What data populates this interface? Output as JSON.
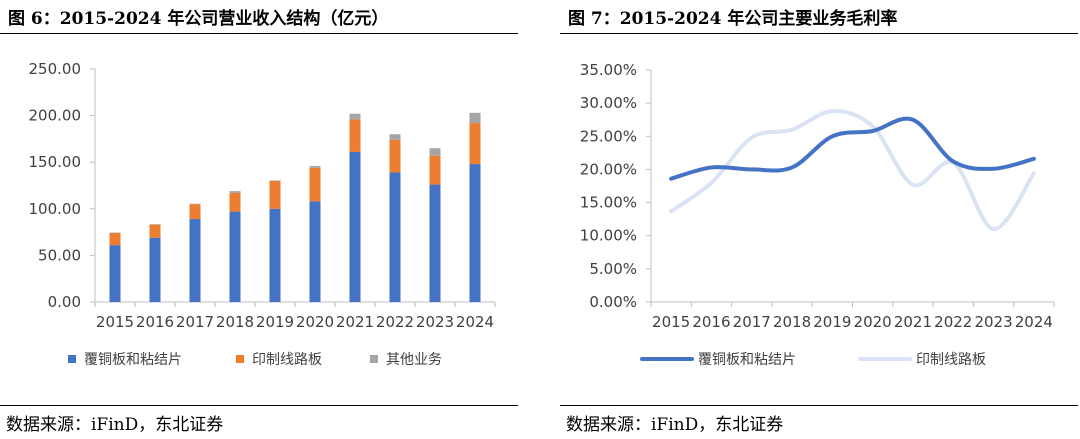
{
  "left": {
    "title": "图 6：2015-2024 年公司营业收入结构（亿元）",
    "source": "数据来源：iFinD，东北证券",
    "y_tick_labels": [
      "0.00",
      "50.00",
      "100.00",
      "150.00",
      "200.00",
      "250.00"
    ],
    "colors": {
      "ccl": "#4472C4",
      "pcb": "#ED7D31",
      "other": "#A5A5A5"
    }
  },
  "right": {
    "title": "图 7：2015-2024 年公司主要业务毛利率",
    "source": "数据来源：iFinD，东北证券",
    "y_tick_labels": [
      "0.00%",
      "5.00%",
      "10.00%",
      "15.00%",
      "20.00%",
      "25.00%",
      "30.00%",
      "35.00%"
    ],
    "colors": {
      "ccl": "#4472C4",
      "pcb": "#DAE3F3"
    }
  },
  "chart_data": [
    {
      "type": "bar",
      "stacked": true,
      "title": "图 6：2015-2024 年公司营业收入结构（亿元）",
      "categories": [
        "2015",
        "2016",
        "2017",
        "2018",
        "2019",
        "2020",
        "2021",
        "2022",
        "2023",
        "2024"
      ],
      "series": [
        {
          "name": "覆铜板和粘结片",
          "values": [
            61,
            69,
            89,
            97,
            100,
            108,
            161,
            139,
            126,
            148
          ]
        },
        {
          "name": "印制线路板",
          "values": [
            13,
            14,
            16,
            20,
            30,
            36,
            35,
            35,
            31,
            44
          ]
        },
        {
          "name": "其他业务",
          "values": [
            0.5,
            0.5,
            0.5,
            2,
            0.5,
            2,
            6,
            6,
            8,
            11
          ]
        }
      ],
      "ylim": [
        0,
        250
      ],
      "legend_position": "bottom"
    },
    {
      "type": "line",
      "title": "图 7：2015-2024 年公司主要业务毛利率",
      "categories": [
        "2015",
        "2016",
        "2017",
        "2018",
        "2019",
        "2020",
        "2021",
        "2022",
        "2023",
        "2024"
      ],
      "series": [
        {
          "name": "覆铜板和粘结片",
          "values": [
            0.186,
            0.203,
            0.2,
            0.203,
            0.25,
            0.258,
            0.275,
            0.212,
            0.201,
            0.216
          ]
        },
        {
          "name": "印制线路板",
          "values": [
            0.137,
            0.18,
            0.248,
            0.26,
            0.288,
            0.265,
            0.177,
            0.21,
            0.11,
            0.194
          ]
        }
      ],
      "ylim": [
        0,
        0.35
      ],
      "legend_position": "bottom"
    }
  ]
}
